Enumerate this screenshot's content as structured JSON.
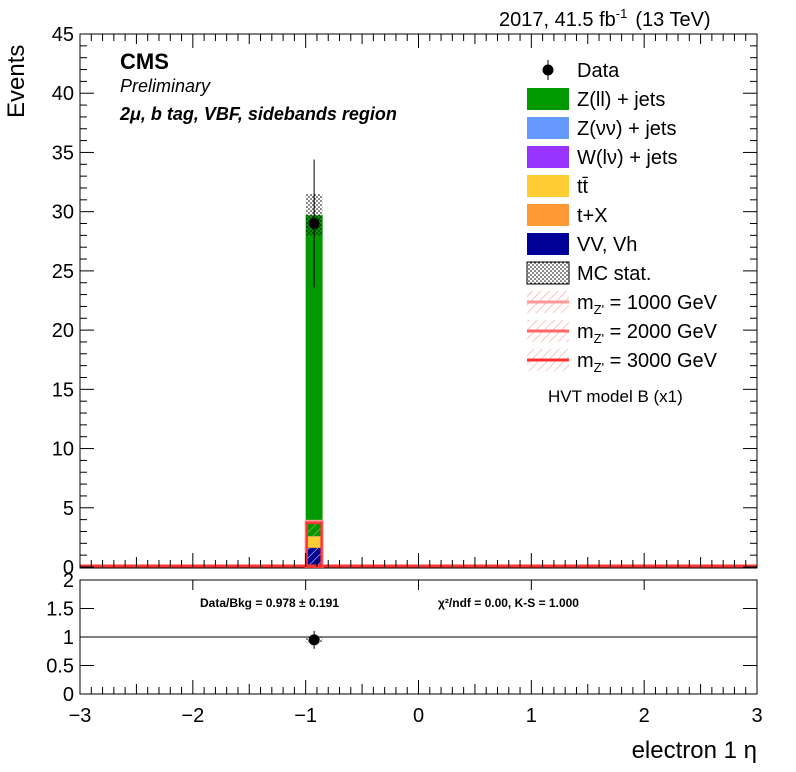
{
  "header": {
    "lumi_label": "2017, 41.5 fb",
    "lumi_sup": "-1",
    "energy_label": "(13 TeV)",
    "experiment": "CMS",
    "status": "Preliminary",
    "region": "2μ, b tag, VBF, sidebands region",
    "model_note": "HVT model B (x1)"
  },
  "colors": {
    "zll": "#009900",
    "znn": "#6699ff",
    "wlv": "#9933ff",
    "ttbar": "#ffcc33",
    "tx": "#ff9933",
    "vv": "#000099",
    "sig1000": "#ff9999",
    "sig2000": "#ff6666",
    "sig3000": "#ff3333",
    "data": "#000000"
  },
  "legend": [
    {
      "label": "Data",
      "kind": "data",
      "color": "#000000"
    },
    {
      "label": "Z(ll) + jets",
      "kind": "fill",
      "color": "#009900"
    },
    {
      "label": "Z(νν) + jets",
      "kind": "fill",
      "color": "#6699ff"
    },
    {
      "label": "W(lν) + jets",
      "kind": "fill",
      "color": "#9933ff"
    },
    {
      "label": "tt̄",
      "kind": "fill",
      "color": "#ffcc33"
    },
    {
      "label": "t+X",
      "kind": "fill",
      "color": "#ff9933"
    },
    {
      "label": "VV, Vh",
      "kind": "fill",
      "color": "#000099"
    },
    {
      "label": "MC stat.",
      "kind": "dots",
      "color": "#000000"
    },
    {
      "label": "m",
      "sub": "Z'",
      "rest": " = 1000 GeV",
      "kind": "signal",
      "color": "#ff9999"
    },
    {
      "label": "m",
      "sub": "Z'",
      "rest": " = 2000 GeV",
      "kind": "signal",
      "color": "#ff6666"
    },
    {
      "label": "m",
      "sub": "Z'",
      "rest": " = 3000 GeV",
      "kind": "signal",
      "color": "#ff3333"
    }
  ],
  "chart_data": {
    "type": "bar",
    "title": "",
    "xlabel": "electron 1 η",
    "ylabel": "Events",
    "xlim": [
      -3,
      3
    ],
    "ylim": [
      0,
      45
    ],
    "x_ticks": [
      -3,
      -2,
      -1,
      0,
      1,
      2,
      3
    ],
    "y_ticks": [
      0,
      5,
      10,
      15,
      20,
      25,
      30,
      35,
      40,
      45
    ],
    "bin": {
      "low": -1.0,
      "high": -0.85
    },
    "stack": [
      {
        "name": "VV, Vh",
        "value": 1.6
      },
      {
        "name": "t+X",
        "value": 0.1
      },
      {
        "name": "tt̄",
        "value": 0.9
      },
      {
        "name": "W(lν) + jets",
        "value": 0.05
      },
      {
        "name": "Z(νν) + jets",
        "value": 0.05
      },
      {
        "name": "Z(ll) + jets",
        "value": 27.0
      }
    ],
    "signals": [
      {
        "name": "m Z' = 1000 GeV",
        "value": 3.9
      },
      {
        "name": "m Z' = 2000 GeV",
        "value": 3.8
      },
      {
        "name": "m Z' = 3000 GeV",
        "value": 3.7
      }
    ],
    "mc_stat": {
      "low": 28.0,
      "high": 31.5
    },
    "data_points": [
      {
        "x": -0.925,
        "y": 29,
        "err_low": 5.4,
        "err_high": 5.4
      }
    ],
    "ratio": {
      "ylim": [
        0,
        2
      ],
      "y_ticks": [
        0,
        0.5,
        1,
        1.5,
        2
      ],
      "points": [
        {
          "x": -0.925,
          "y": 0.95,
          "err": 0.05
        }
      ],
      "data_bkg_label": "Data/Bkg = 0.978 ± 0.191",
      "chi2_label": "χ²/ndf = 0.00,   K-S = 1.000"
    },
    "legend_position": "top-right"
  }
}
